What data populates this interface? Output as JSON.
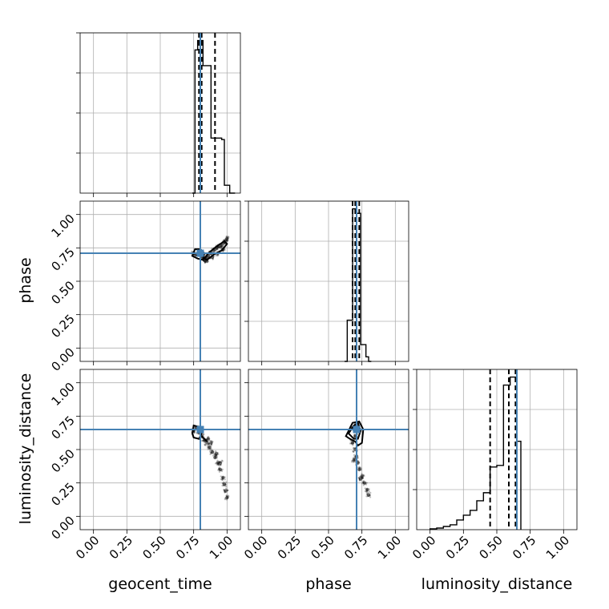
{
  "chart_data": {
    "type": "corner",
    "parameters": [
      "geocent_time",
      "phase",
      "luminosity_distance"
    ],
    "axis_ticks": [
      "0.00",
      "0.25",
      "0.50",
      "0.75",
      "1.00"
    ],
    "axis_range": [
      -0.1,
      1.1
    ],
    "truths": {
      "geocent_time": 0.8,
      "phase": 0.71,
      "luminosity_distance": 0.65
    },
    "colors": {
      "truth": "#4682b4",
      "line": "#000000",
      "grid": "#b0b0b0",
      "scatter": "#000000"
    },
    "histograms": {
      "geocent_time": {
        "bin_edges": [
          0.74,
          0.76,
          0.78,
          0.8,
          0.82,
          0.84,
          0.86,
          0.88,
          0.9,
          0.92,
          0.94,
          0.96,
          0.98,
          1.0,
          1.02,
          1.04,
          1.06
        ],
        "counts": [
          0,
          0.91,
          0.97,
          0.97,
          0.81,
          0.81,
          0.81,
          0.35,
          0.35,
          0.35,
          0.35,
          0.34,
          0.05,
          0.05,
          0,
          0
        ],
        "quantiles": [
          0.79,
          0.81,
          0.91
        ]
      },
      "phase": {
        "bin_edges": [
          0.62,
          0.64,
          0.66,
          0.68,
          0.7,
          0.72,
          0.74,
          0.76,
          0.78,
          0.8,
          0.82
        ],
        "counts": [
          0,
          0.27,
          0.27,
          1.0,
          0.97,
          0.97,
          0.11,
          0.11,
          0.03,
          0
        ],
        "quantiles": [
          0.68,
          0.7,
          0.73
        ]
      },
      "luminosity_distance": {
        "bin_edges": [
          0.0,
          0.05,
          0.1,
          0.15,
          0.2,
          0.25,
          0.3,
          0.35,
          0.4,
          0.45,
          0.5,
          0.55,
          0.6,
          0.65,
          0.68
        ],
        "counts": [
          0.005,
          0.01,
          0.02,
          0.03,
          0.06,
          0.09,
          0.12,
          0.18,
          0.23,
          0.39,
          0.4,
          0.9,
          0.95,
          0.55
        ],
        "quantiles": [
          0.45,
          0.59,
          0.64
        ]
      }
    },
    "pairs": [
      {
        "x": "geocent_time",
        "y": "phase",
        "samples": [
          [
            0.75,
            0.71
          ],
          [
            0.77,
            0.7
          ],
          [
            0.79,
            0.72
          ],
          [
            0.81,
            0.7
          ],
          [
            0.82,
            0.68
          ],
          [
            0.84,
            0.67
          ],
          [
            0.86,
            0.69
          ],
          [
            0.88,
            0.71
          ],
          [
            0.9,
            0.73
          ],
          [
            0.92,
            0.75
          ],
          [
            0.94,
            0.76
          ],
          [
            0.96,
            0.77
          ],
          [
            0.98,
            0.79
          ],
          [
            0.99,
            0.8
          ],
          [
            1.0,
            0.82
          ],
          [
            0.97,
            0.74
          ],
          [
            0.93,
            0.71
          ],
          [
            0.89,
            0.68
          ],
          [
            0.85,
            0.65
          ],
          [
            0.83,
            0.66
          ]
        ],
        "contours": [
          [
            [
              0.74,
              0.69
            ],
            [
              0.76,
              0.74
            ],
            [
              0.8,
              0.74
            ],
            [
              0.83,
              0.71
            ],
            [
              0.82,
              0.66
            ],
            [
              0.78,
              0.67
            ],
            [
              0.74,
              0.69
            ]
          ],
          [
            [
              0.85,
              0.66
            ],
            [
              0.9,
              0.7
            ],
            [
              0.96,
              0.73
            ],
            [
              1.0,
              0.78
            ],
            [
              0.98,
              0.8
            ],
            [
              0.92,
              0.76
            ],
            [
              0.86,
              0.71
            ],
            [
              0.83,
              0.67
            ],
            [
              0.85,
              0.66
            ]
          ]
        ]
      },
      {
        "x": "geocent_time",
        "y": "luminosity_distance",
        "samples": [
          [
            0.75,
            0.64
          ],
          [
            0.77,
            0.66
          ],
          [
            0.79,
            0.63
          ],
          [
            0.81,
            0.6
          ],
          [
            0.83,
            0.57
          ],
          [
            0.85,
            0.55
          ],
          [
            0.87,
            0.52
          ],
          [
            0.89,
            0.48
          ],
          [
            0.91,
            0.44
          ],
          [
            0.93,
            0.4
          ],
          [
            0.95,
            0.35
          ],
          [
            0.97,
            0.29
          ],
          [
            0.98,
            0.24
          ],
          [
            0.99,
            0.19
          ],
          [
            1.0,
            0.14
          ],
          [
            0.92,
            0.47
          ],
          [
            0.95,
            0.4
          ],
          [
            0.88,
            0.55
          ],
          [
            0.86,
            0.58
          ]
        ],
        "contours": [
          [
            [
              0.74,
              0.62
            ],
            [
              0.75,
              0.68
            ],
            [
              0.79,
              0.67
            ],
            [
              0.81,
              0.62
            ],
            [
              0.79,
              0.58
            ],
            [
              0.75,
              0.59
            ],
            [
              0.74,
              0.62
            ]
          ],
          [
            [
              0.81,
              0.6
            ],
            [
              0.85,
              0.56
            ],
            [
              0.83,
              0.58
            ],
            [
              0.81,
              0.6
            ]
          ]
        ]
      },
      {
        "x": "phase",
        "y": "luminosity_distance",
        "samples": [
          [
            0.68,
            0.66
          ],
          [
            0.71,
            0.68
          ],
          [
            0.73,
            0.64
          ],
          [
            0.7,
            0.6
          ],
          [
            0.68,
            0.55
          ],
          [
            0.7,
            0.5
          ],
          [
            0.71,
            0.45
          ],
          [
            0.72,
            0.4
          ],
          [
            0.73,
            0.35
          ],
          [
            0.75,
            0.3
          ],
          [
            0.77,
            0.25
          ],
          [
            0.79,
            0.2
          ],
          [
            0.8,
            0.16
          ],
          [
            0.74,
            0.28
          ],
          [
            0.69,
            0.42
          ]
        ],
        "contours": [
          [
            [
              0.65,
              0.62
            ],
            [
              0.69,
              0.68
            ],
            [
              0.72,
              0.7
            ],
            [
              0.74,
              0.64
            ],
            [
              0.72,
              0.58
            ],
            [
              0.69,
              0.58
            ],
            [
              0.65,
              0.62
            ]
          ],
          [
            [
              0.63,
              0.6
            ],
            [
              0.68,
              0.7
            ],
            [
              0.73,
              0.71
            ],
            [
              0.76,
              0.65
            ],
            [
              0.75,
              0.55
            ],
            [
              0.72,
              0.53
            ],
            [
              0.7,
              0.56
            ],
            [
              0.66,
              0.58
            ],
            [
              0.63,
              0.6
            ]
          ]
        ]
      }
    ],
    "xlabels": [
      "geocent_time",
      "phase",
      "luminosity_distance"
    ],
    "ylabels": [
      "phase",
      "luminosity_distance"
    ]
  }
}
